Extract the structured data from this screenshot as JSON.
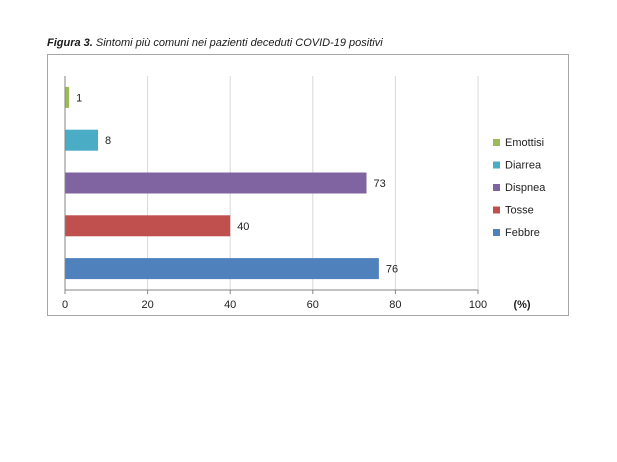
{
  "caption": {
    "label": "Figura 3.",
    "text": "Sintomi più comuni nei pazienti deceduti COVID-19 positivi"
  },
  "chart_data": {
    "type": "bar",
    "orientation": "horizontal",
    "title": "Figura 3. Sintomi più comuni nei pazienti deceduti COVID-19 positivi",
    "categories": [
      "Febbre",
      "Tosse",
      "Dispnea",
      "Diarrea",
      "Emottisi"
    ],
    "values": [
      76,
      40,
      73,
      8,
      1
    ],
    "colors": [
      "#4f81bd",
      "#c0504d",
      "#8064a2",
      "#4bacc6",
      "#9bbb59"
    ],
    "xlim": [
      0,
      100
    ],
    "xticks": [
      "0",
      "20",
      "40",
      "60",
      "80",
      "100"
    ],
    "xunit": "(%)",
    "grid": true,
    "legend": [
      "Emottisi",
      "Diarrea",
      "Dispnea",
      "Tosse",
      "Febbre"
    ],
    "legend_position": "right"
  }
}
